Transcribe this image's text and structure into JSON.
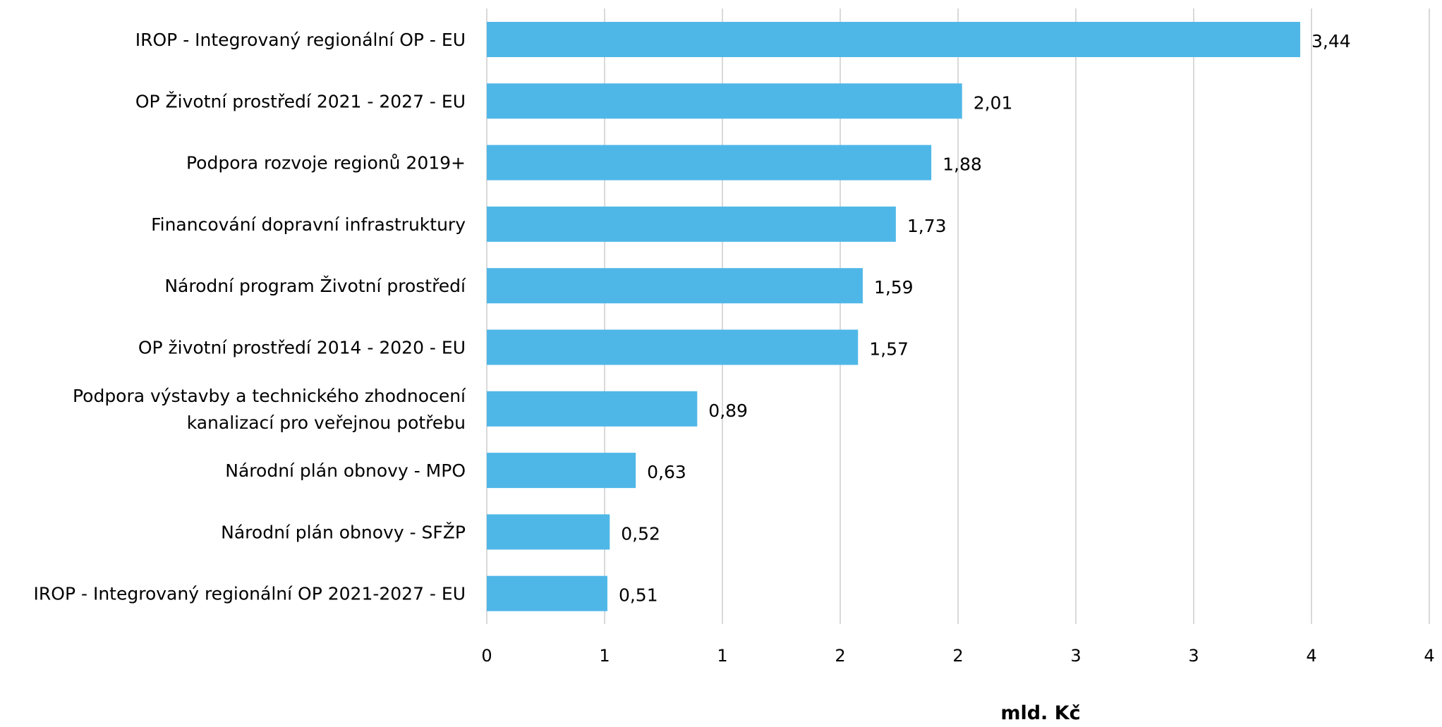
{
  "chart_data": {
    "type": "bar",
    "orientation": "horizontal",
    "categories": [
      "IROP - Integrovaný regionální OP - EU",
      "OP Životní prostředí 2021 - 2027 - EU",
      "Podpora rozvoje regionů 2019+",
      "Financování dopravní infrastruktury",
      "Národní program Životní prostředí",
      "OP životní prostředí 2014 - 2020 - EU",
      "Podpora výstavby a technického zhodnocení kanalizací pro veřejnou potřebu",
      "Národní plán obnovy - MPO",
      "Národní plán obnovy - SFŽP",
      "IROP - Integrovaný regionální OP 2021-2027 - EU"
    ],
    "category_lines": [
      [
        "IROP - Integrovaný regionální OP - EU"
      ],
      [
        "OP Životní prostředí 2021 - 2027 - EU"
      ],
      [
        "Podpora rozvoje regionů 2019+"
      ],
      [
        "Financování dopravní infrastruktury"
      ],
      [
        "Národní program Životní prostředí"
      ],
      [
        "OP životní prostředí 2014 - 2020 - EU"
      ],
      [
        "Podpora výstavby a technického zhodnocení",
        "kanalizací pro veřejnou potřebu"
      ],
      [
        "Národní plán obnovy - MPO"
      ],
      [
        "Národní plán obnovy - SFŽP"
      ],
      [
        "IROP - Integrovaný regionální OP 2021-2027 - EU"
      ]
    ],
    "values": [
      3.44,
      2.01,
      1.88,
      1.73,
      1.59,
      1.57,
      0.89,
      0.63,
      0.52,
      0.51
    ],
    "value_labels": [
      "3,44",
      "2,01",
      "1,88",
      "1,73",
      "1,59",
      "1,57",
      "0,89",
      "0,63",
      "0,52",
      "0,51"
    ],
    "xlim": [
      0,
      4
    ],
    "x_tick_labels": [
      "0",
      "1",
      "1",
      "2",
      "2",
      "3",
      "3",
      "4",
      "4"
    ],
    "xlabel": "mld. Kč",
    "ylabel": "",
    "title": "",
    "grid": "vertical",
    "bar_color": "#4fb7e7",
    "grid_color": "#d9d9d9"
  }
}
